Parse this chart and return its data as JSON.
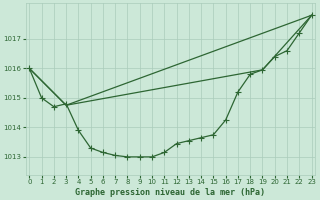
{
  "title": "Graphe pression niveau de la mer (hPa)",
  "background_color": "#cce8d8",
  "grid_color": "#aaccbb",
  "line_color": "#2d6633",
  "ylim": [
    1012.4,
    1018.2
  ],
  "xlim": [
    -0.3,
    23.3
  ],
  "yticks": [
    1013,
    1014,
    1015,
    1016,
    1017
  ],
  "xticks": [
    0,
    1,
    2,
    3,
    4,
    5,
    6,
    7,
    8,
    9,
    10,
    11,
    12,
    13,
    14,
    15,
    16,
    17,
    18,
    19,
    20,
    21,
    22,
    23
  ],
  "series1_x": [
    0,
    1,
    2,
    3,
    4,
    5,
    6,
    7,
    8,
    9,
    10,
    11,
    12,
    13,
    14,
    15,
    16,
    17,
    18,
    19,
    20,
    21,
    22,
    23
  ],
  "series1_y": [
    1016.0,
    1015.0,
    1014.7,
    1014.8,
    1013.9,
    1013.3,
    1013.15,
    1013.05,
    1013.0,
    1013.0,
    1013.0,
    1013.15,
    1013.45,
    1013.55,
    1013.65,
    1013.75,
    1014.25,
    1015.2,
    1015.8,
    1015.95,
    1016.4,
    1016.6,
    1017.2,
    1017.8
  ],
  "series2_x": [
    0,
    3,
    23
  ],
  "series2_y": [
    1016.0,
    1014.75,
    1017.8
  ],
  "series3_x": [
    0,
    3,
    19,
    23
  ],
  "series3_y": [
    1016.0,
    1014.75,
    1015.95,
    1017.8
  ]
}
